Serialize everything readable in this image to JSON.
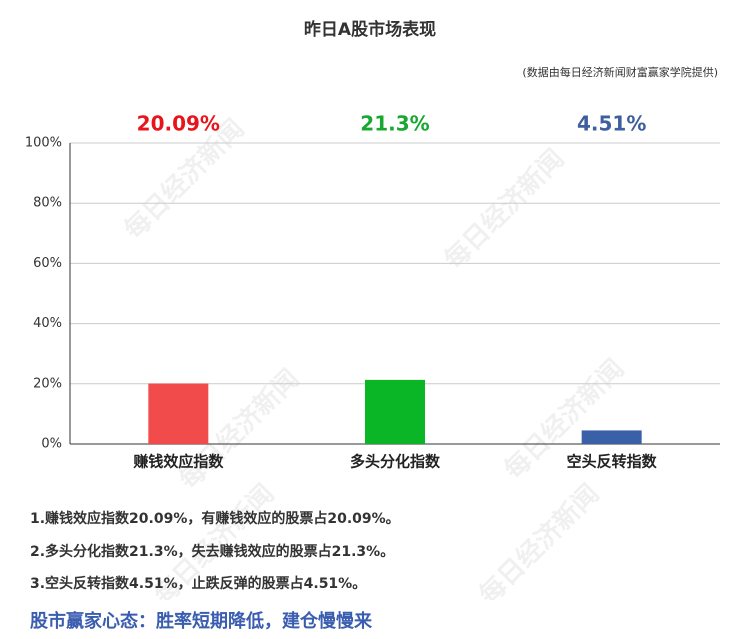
{
  "chart_data": {
    "type": "bar",
    "title": "昨日A股市场表现",
    "subtitle": "(数据由每日经济新闻财富赢家学院提供)",
    "categories": [
      "赚钱效应指数",
      "多头分化指数",
      "空头反转指数"
    ],
    "values": [
      20.09,
      21.3,
      4.51
    ],
    "value_labels": [
      "20.09%",
      "21.3%",
      "4.51%"
    ],
    "colors": [
      "#f24b4b",
      "#0ab526",
      "#3a61a7"
    ],
    "label_colors": [
      "#e8141b",
      "#18a832",
      "#3d5fa0"
    ],
    "ylim": [
      0,
      100
    ],
    "yticks": [
      {
        "value": 0,
        "label": "0%"
      },
      {
        "value": 20,
        "label": "20%"
      },
      {
        "value": 40,
        "label": "40%"
      },
      {
        "value": 60,
        "label": "60%"
      },
      {
        "value": 80,
        "label": "80%"
      },
      {
        "value": 100,
        "label": "100%"
      }
    ],
    "grid": true,
    "watermark": "每日经济新闻"
  },
  "notes": [
    "1.赚钱效应指数20.09%，有赚钱效应的股票占20.09%。",
    "2.多头分化指数21.3%，失去赚钱效应的股票占21.3%。",
    "3.空头反转指数4.51%，止跌反弹的股票占4.51%。"
  ],
  "highlight": "股市赢家心态：胜率短期降低，建仓慢慢来"
}
